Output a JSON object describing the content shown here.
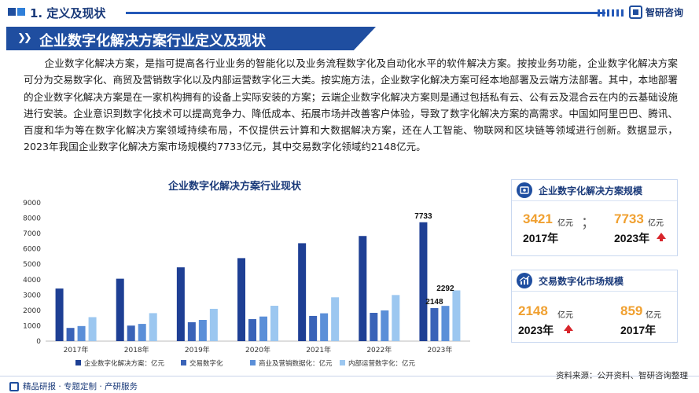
{
  "header": {
    "section_label": "1. 定义及现状",
    "brand": "智研咨询",
    "page_title": "企业数字化解决方案行业定义及现状"
  },
  "intro": "企业数字化解决方案，是指可提高各行业业务的智能化以及业务流程数字化及自动化水平的软件解决方案。按按业务功能，企业数字化解决方案可分为交易数字化、商贸及营销数字化以及内部运营数字化三大类。按实施方法，企业数字化解决方案可经本地部署及云端方法部署。其中，本地部署的企业数字化解决方案是在一家机构拥有的设备上实际安装的方案；云端企业数字化解决方案则是通过包括私有云、公有云及混合云在内的云基础设施进行安装。企业意识到数字化技术可以提高竞争力、降低成本、拓展市场并改善客户体验，导致了数字化解决方案的高需求。中国如阿里巴巴、腾讯、百度和华为等在数字化解决方案领域持续布局，不仅提供云计算和大数据解决方案，还在人工智能、物联网和区块链等领域进行创新。数据显示，2023年我国企业数字化解决方案市场规模约7733亿元，其中交易数字化领域约2148亿元。",
  "chart_data": {
    "type": "bar",
    "title": "企业数字化解决方案行业现状",
    "categories": [
      "2017年",
      "2018年",
      "2019年",
      "2020年",
      "2021年",
      "2022年",
      "2023年"
    ],
    "ylim": [
      0,
      9000
    ],
    "yticks": [
      0,
      1000,
      2000,
      3000,
      4000,
      5000,
      6000,
      7000,
      8000,
      9000
    ],
    "grid": false,
    "legend_position": "bottom",
    "series": [
      {
        "name": "企业数字化解决方案：亿元",
        "color": "#1e3f94",
        "values": [
          3421,
          4060,
          4800,
          5400,
          6370,
          6840,
          7733
        ]
      },
      {
        "name": "交易数字化",
        "color": "#3a63b8",
        "values": [
          859,
          1010,
          1230,
          1430,
          1640,
          1840,
          2148
        ]
      },
      {
        "name": "商业及营销数据化：亿元",
        "color": "#5b8fd8",
        "values": [
          980,
          1120,
          1380,
          1600,
          1810,
          2000,
          2292
        ]
      },
      {
        "name": "内部运营数字化：亿元",
        "color": "#9cc7f0",
        "values": [
          1560,
          1820,
          2100,
          2300,
          2850,
          3000,
          3300
        ]
      }
    ],
    "annotations": [
      {
        "category": "2023年",
        "series": "企业数字化解决方案：亿元",
        "text": "7733"
      },
      {
        "category": "2023年",
        "series": "交易数字化",
        "text": "2148"
      },
      {
        "category": "2023年",
        "series": "商业及营销数据化：亿元",
        "text": "2292"
      }
    ]
  },
  "cards": [
    {
      "title": "企业数字化解决方案规模",
      "left": {
        "value": "3421",
        "unit": "亿元",
        "year": "2017年"
      },
      "right": {
        "value": "7733",
        "unit": "亿元",
        "year": "2023年"
      },
      "separator": "；",
      "trend": "up"
    },
    {
      "title": "交易数字化市场规模",
      "left": {
        "value": "2148",
        "unit": "亿元",
        "year": "2023年"
      },
      "right": {
        "value": "859",
        "unit": "亿元",
        "year": "2017年"
      },
      "trend": "up"
    }
  ],
  "footer": {
    "left": "精品研报 · 专题定制 · 产研服务",
    "source": "资料来源：公开资料、智研咨询整理"
  },
  "colors": {
    "brand_blue": "#1f4ea0",
    "accent_orange": "#f0a030",
    "up_red": "#d8262c"
  }
}
